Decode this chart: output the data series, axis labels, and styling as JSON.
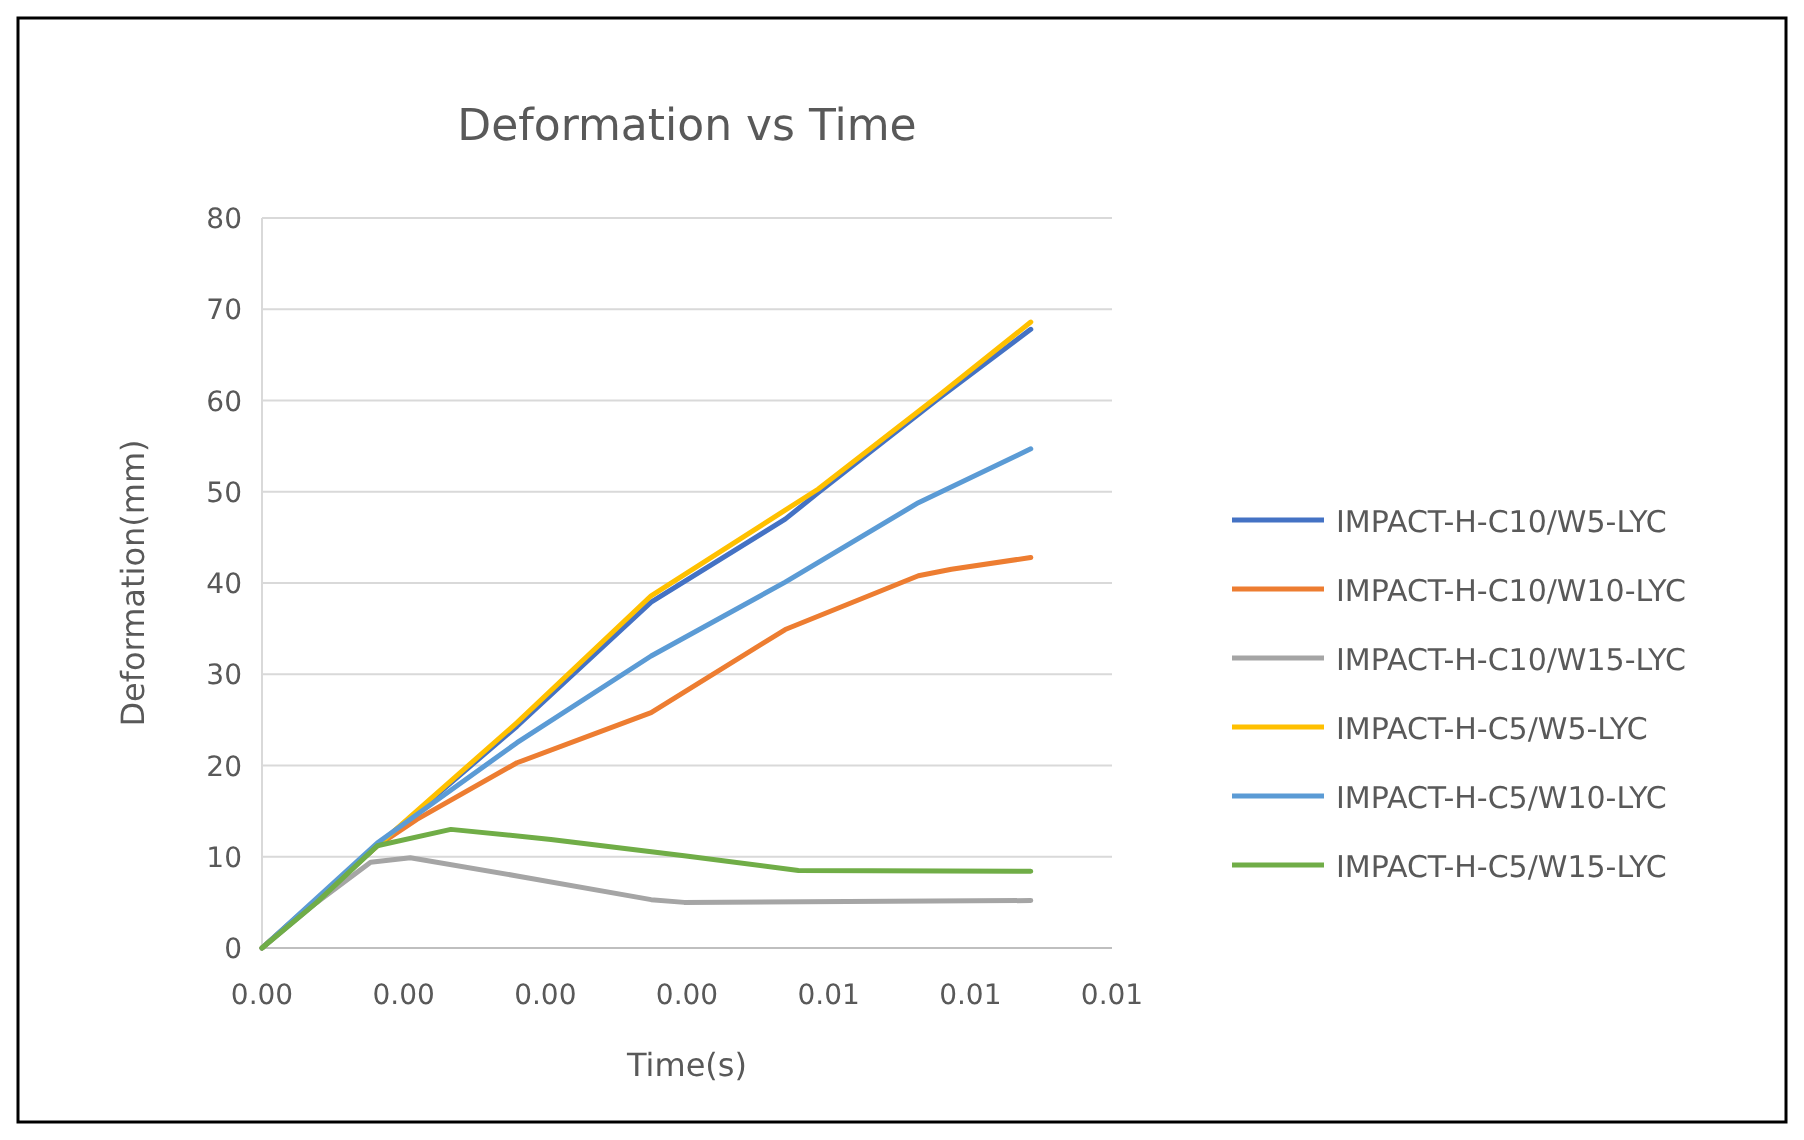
{
  "chart_data": {
    "type": "line",
    "title": "Deformation vs Time",
    "xlabel": "Time(s)",
    "ylabel": "Deformation(mm)",
    "xlim": [
      0,
      0.009
    ],
    "xticks": [
      {
        "value": 0,
        "label": "0.00"
      },
      {
        "value": 0.0015,
        "label": "0.00"
      },
      {
        "value": 0.003,
        "label": "0.00"
      },
      {
        "value": 0.0045,
        "label": "0.00"
      },
      {
        "value": 0.006,
        "label": "0.01"
      },
      {
        "value": 0.0075,
        "label": "0.01"
      },
      {
        "value": 0.009,
        "label": "0.01"
      }
    ],
    "ylim": [
      0,
      80
    ],
    "yticks": [
      0,
      10,
      20,
      30,
      40,
      50,
      60,
      70,
      80
    ],
    "grid": "y",
    "legend": "right",
    "marker": "none",
    "line_style": "solid",
    "series": [
      {
        "name": "IMPACT-H-C10/W5-LYC",
        "color": "#4472c4",
        "x": [
          0,
          0.00122,
          0.0027,
          0.00412,
          0.00554,
          0.00589,
          0.00716,
          0.00814
        ],
        "values": [
          0,
          11.2,
          24.3,
          37.9,
          47.0,
          49.9,
          60.2,
          67.8
        ]
      },
      {
        "name": "IMPACT-H-C10/W10-LYC",
        "color": "#ed7d31",
        "x": [
          0,
          0.00122,
          0.00164,
          0.0027,
          0.00412,
          0.00554,
          0.00695,
          0.0073,
          0.00814
        ],
        "values": [
          0,
          11.2,
          14.1,
          20.3,
          25.8,
          34.9,
          40.8,
          41.5,
          42.8
        ]
      },
      {
        "name": "IMPACT-H-C10/W15-LYC",
        "color": "#a5a5a5",
        "x": [
          0,
          0.00058,
          0.00115,
          0.00157,
          0.0027,
          0.00412,
          0.00447,
          0.00814
        ],
        "values": [
          0,
          5.0,
          9.4,
          9.9,
          7.9,
          5.3,
          5.0,
          5.2
        ]
      },
      {
        "name": "IMPACT-H-C5/W5-LYC",
        "color": "#ffc000",
        "x": [
          0,
          0.00122,
          0.0027,
          0.00412,
          0.00589,
          0.00716,
          0.00814
        ],
        "values": [
          0,
          11.2,
          24.7,
          38.6,
          50.3,
          60.5,
          68.6
        ]
      },
      {
        "name": "IMPACT-H-C5/W10-LYC",
        "color": "#5b9bd5",
        "x": [
          0,
          0.00122,
          0.0027,
          0.00412,
          0.00554,
          0.00695,
          0.00814
        ],
        "values": [
          0,
          11.5,
          22.5,
          32.0,
          40.1,
          48.8,
          54.7
        ]
      },
      {
        "name": "IMPACT-H-C5/W15-LYC",
        "color": "#70ad47",
        "x": [
          0,
          0.00058,
          0.00122,
          0.002,
          0.00306,
          0.00447,
          0.00568,
          0.00814
        ],
        "values": [
          0,
          5.0,
          11.2,
          13.0,
          11.9,
          10.1,
          8.5,
          8.4
        ]
      }
    ]
  }
}
